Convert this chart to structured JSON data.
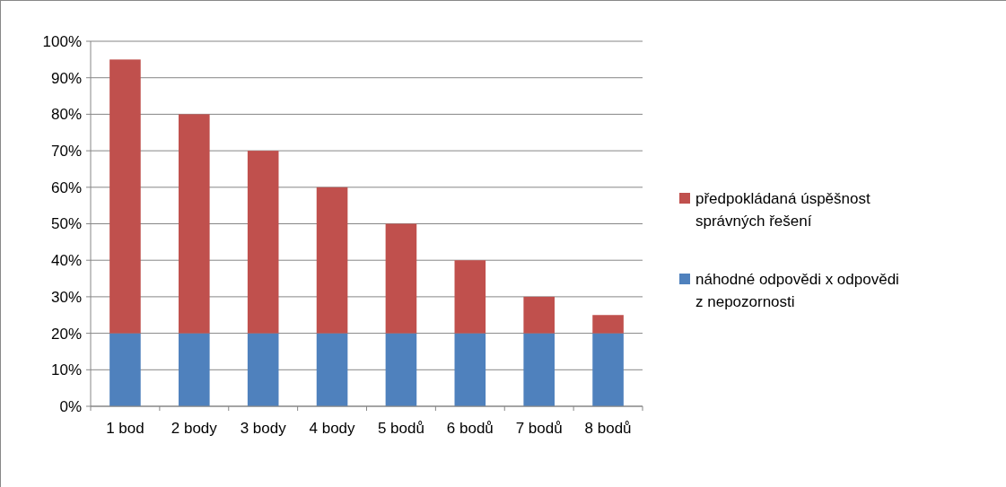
{
  "chart_data": {
    "type": "bar",
    "stacked": true,
    "categories": [
      "1 bod",
      "2 body",
      "3 body",
      "4 body",
      "5 bodů",
      "6 bodů",
      "7 bodů",
      "8 bodů"
    ],
    "series": [
      {
        "name": "náhodné odpovědi x odpovědi z nepozornosti",
        "color": "#4f81bd",
        "values": [
          20,
          20,
          20,
          20,
          20,
          20,
          20,
          20
        ]
      },
      {
        "name": "předpokládaná úspěšnost správných řešení",
        "color": "#c0504d",
        "values": [
          75,
          60,
          50,
          40,
          30,
          20,
          10,
          5
        ]
      }
    ],
    "ylim": [
      0,
      100
    ],
    "yticks": [
      {
        "value": 0,
        "label": "0%"
      },
      {
        "value": 10,
        "label": "10%"
      },
      {
        "value": 20,
        "label": "20%"
      },
      {
        "value": 30,
        "label": "30%"
      },
      {
        "value": 40,
        "label": "40%"
      },
      {
        "value": 50,
        "label": "50%"
      },
      {
        "value": 60,
        "label": "60%"
      },
      {
        "value": 70,
        "label": "70%"
      },
      {
        "value": 80,
        "label": "80%"
      },
      {
        "value": 90,
        "label": "90%"
      },
      {
        "value": 100,
        "label": "100%"
      }
    ],
    "grid": "y",
    "legend": "right"
  }
}
